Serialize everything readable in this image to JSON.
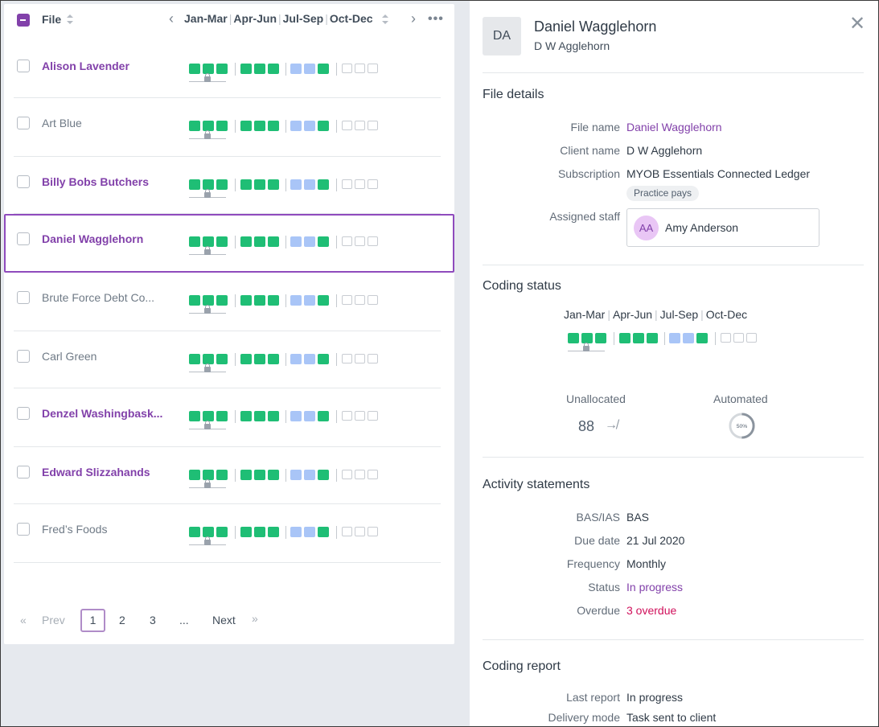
{
  "list": {
    "header": {
      "file_label": "File",
      "quarters": [
        "Jan-Mar",
        "Apr-Jun",
        "Jul-Sep",
        "Oct-Dec"
      ]
    },
    "rows": [
      {
        "name": "Alison Lavender",
        "active": true,
        "selected": false
      },
      {
        "name": "Art Blue",
        "active": false,
        "selected": false
      },
      {
        "name": "Billy Bobs Butchers",
        "active": true,
        "selected": false
      },
      {
        "name": "Daniel Wagglehorn",
        "active": true,
        "selected": true
      },
      {
        "name": "Brute Force Debt Co...",
        "active": false,
        "selected": false
      },
      {
        "name": "Carl Green",
        "active": false,
        "selected": false
      },
      {
        "name": "Denzel Washingbask...",
        "active": true,
        "selected": false
      },
      {
        "name": "Edward Slizzahands",
        "active": true,
        "selected": false
      },
      {
        "name": "Fred’s Foods",
        "active": false,
        "selected": false
      }
    ],
    "quarter_status": [
      [
        "done",
        "done",
        "done"
      ],
      [
        "done",
        "done",
        "done"
      ],
      [
        "pending",
        "pending",
        "done"
      ],
      [
        "empty",
        "empty",
        "empty"
      ]
    ],
    "pagination": {
      "prev": "Prev",
      "pages": [
        "1",
        "2",
        "3"
      ],
      "ellipsis": "...",
      "next": "Next",
      "current": "1"
    }
  },
  "detail": {
    "initials": "DA",
    "name": "Daniel Wagglehorn",
    "subtitle": "D W Agglehorn",
    "file_details": {
      "title": "File details",
      "file_name_label": "File name",
      "file_name": "Daniel Wagglehorn",
      "client_name_label": "Client name",
      "client_name": "D W Agglehorn",
      "subscription_label": "Subscription",
      "subscription": "MYOB Essentials Connected Ledger",
      "subscription_tag": "Practice pays",
      "assigned_staff_label": "Assigned staff",
      "staff_initials": "AA",
      "staff_name": "Amy Anderson"
    },
    "coding_status": {
      "title": "Coding status",
      "quarters": [
        "Jan-Mar",
        "Apr-Jun",
        "Jul-Sep",
        "Oct-Dec"
      ],
      "unallocated_label": "Unallocated",
      "unallocated_value": "88",
      "automated_label": "Automated",
      "automated_value": "50%",
      "automated_fraction": 0.5
    },
    "activity_statements": {
      "title": "Activity statements",
      "bas_label": "BAS/IAS",
      "bas_value": "BAS",
      "due_label": "Due date",
      "due_value": "21 Jul 2020",
      "frequency_label": "Frequency",
      "frequency_value": "Monthly",
      "status_label": "Status",
      "status_value": "In progress",
      "overdue_label": "Overdue",
      "overdue_value": "3 overdue"
    },
    "coding_report": {
      "title": "Coding report",
      "last_report_label": "Last report",
      "last_report_value": "In progress",
      "delivery_label": "Delivery mode",
      "delivery_value": "Task sent to client"
    }
  },
  "colors": {
    "accent": "#8241aa",
    "done": "#1fbe75",
    "pending": "#a9c5f7",
    "danger": "#d0105b"
  }
}
